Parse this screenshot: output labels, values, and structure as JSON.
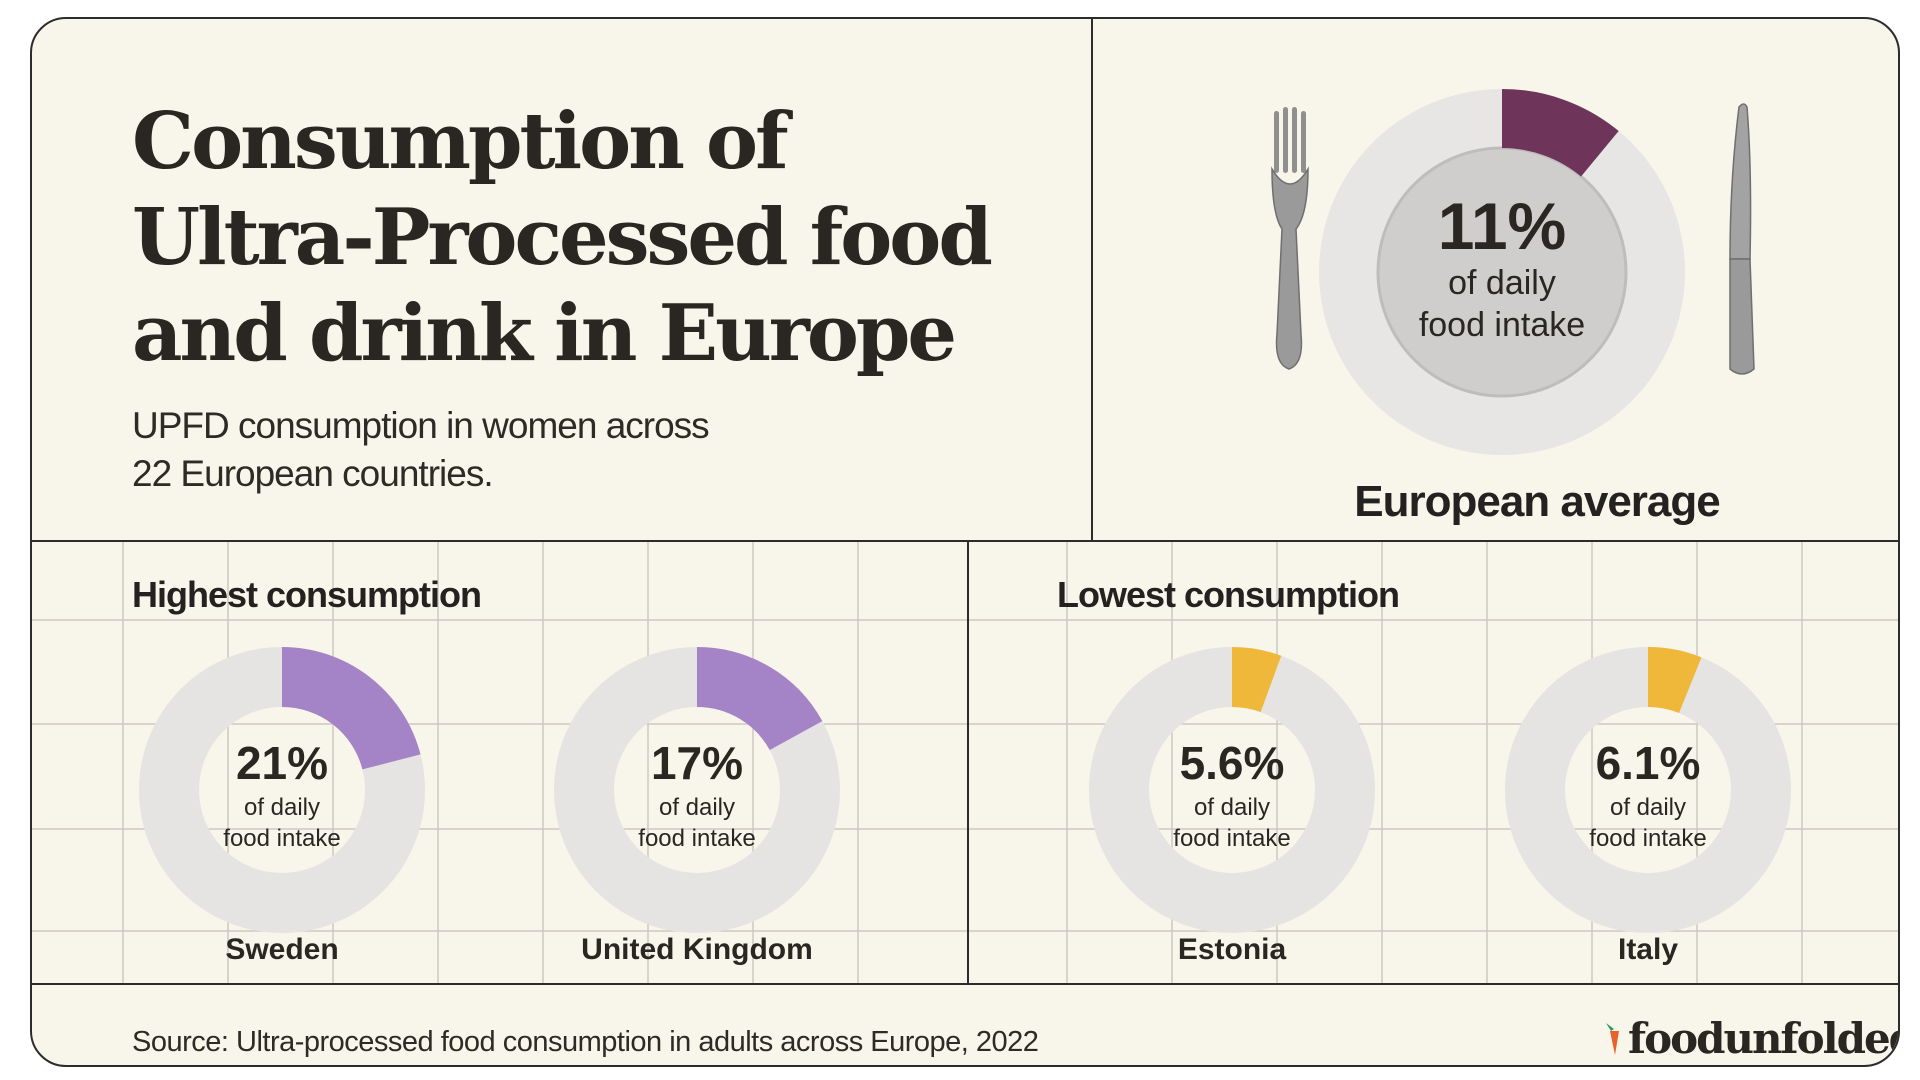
{
  "header": {
    "title": "Consumption of Ultra-Processed food and drink in Europe",
    "subtitle": "UPFD consumption in women across 22 European countries."
  },
  "sections": {
    "highest_label": "Highest consumption",
    "lowest_label": "Lowest consumption"
  },
  "footer": {
    "source": "Source: Ultra-processed food consumption in adults across Europe, 2022",
    "brand": "foodunfolded",
    "brand_mark": "®"
  },
  "colors": {
    "average": "#6e3459",
    "highest": "#a583c7",
    "lowest": "#efb83a",
    "track": "#e5e4e2"
  },
  "chart_data": {
    "type": "pie",
    "title": "Consumption of Ultra-Processed food and drink in Europe",
    "unit": "% of daily food intake",
    "caption": "of daily food intake",
    "caption_lines": [
      "of daily",
      "food intake"
    ],
    "european_average": {
      "label": "European average",
      "value": 11,
      "display": "11%"
    },
    "highest": [
      {
        "country": "Sweden",
        "value": 21,
        "display": "21%"
      },
      {
        "country": "United Kingdom",
        "value": 17,
        "display": "17%"
      }
    ],
    "lowest": [
      {
        "country": "Estonia",
        "value": 5.6,
        "display": "5.6%"
      },
      {
        "country": "Italy",
        "value": 6.1,
        "display": "6.1%"
      }
    ]
  }
}
